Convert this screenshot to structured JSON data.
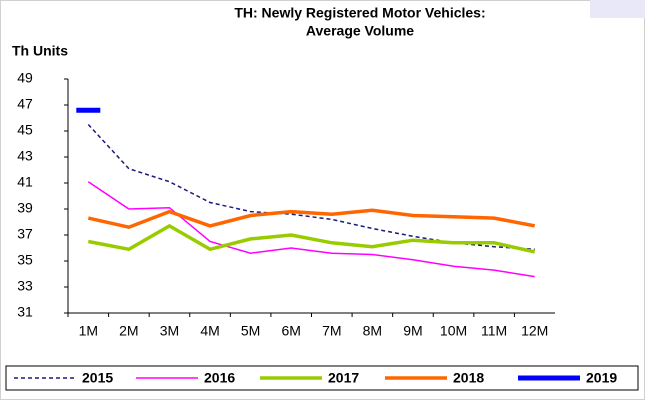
{
  "chart_data": {
    "type": "line",
    "title": "TH: Newly Registered Motor Vehicles:",
    "subtitle": "Average Volume",
    "y_label": "Th Units",
    "categories": [
      "1M",
      "2M",
      "3M",
      "4M",
      "5M",
      "6M",
      "7M",
      "8M",
      "9M",
      "10M",
      "11M",
      "12M"
    ],
    "series": [
      {
        "name": "2015",
        "color": "#1a1a7a",
        "dash": true,
        "width": 1.5,
        "values": [
          45.5,
          42.1,
          41.1,
          39.5,
          38.8,
          38.6,
          38.2,
          37.5,
          36.9,
          36.4,
          36.1,
          35.9
        ]
      },
      {
        "name": "2016",
        "color": "#ff00ff",
        "dash": false,
        "width": 1.5,
        "values": [
          41.1,
          39.0,
          39.1,
          36.5,
          35.6,
          36.0,
          35.6,
          35.5,
          35.1,
          34.6,
          34.3,
          33.8
        ]
      },
      {
        "name": "2017",
        "color": "#99cc00",
        "dash": false,
        "width": 3.5,
        "values": [
          36.5,
          35.9,
          37.7,
          35.9,
          36.7,
          37.0,
          36.4,
          36.1,
          36.6,
          36.4,
          36.4,
          35.7
        ]
      },
      {
        "name": "2018",
        "color": "#ff6600",
        "dash": false,
        "width": 3.5,
        "values": [
          38.3,
          37.6,
          38.8,
          37.7,
          38.5,
          38.8,
          38.6,
          38.9,
          38.5,
          38.4,
          38.3,
          37.7
        ]
      },
      {
        "name": "2019",
        "color": "#0000ff",
        "dash": false,
        "width": 5,
        "values": [
          46.6,
          null,
          null,
          null,
          null,
          null,
          null,
          null,
          null,
          null,
          null,
          null
        ]
      }
    ],
    "ylim": [
      31,
      49
    ],
    "yticks": [
      31,
      33,
      35,
      37,
      39,
      41,
      43,
      45,
      47,
      49
    ],
    "legend": "bottom"
  }
}
